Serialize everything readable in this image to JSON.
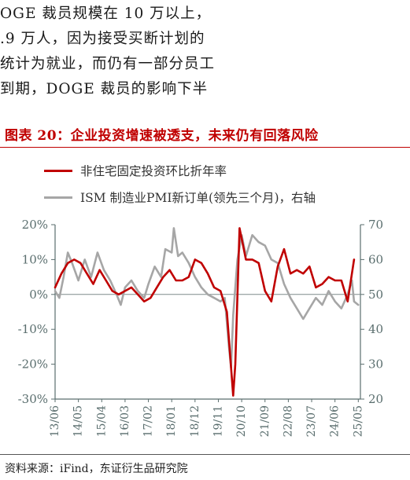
{
  "paragraph": {
    "lines": [
      "OGE 裁员规模在 10 万以上，",
      ".9 万人，因为接受买断计划的",
      "统计为就业，而仍有一部分员工",
      "到期，DOGE 裁员的影响下半"
    ]
  },
  "chart_title": "图表 20：企业投资增速被透支，未来仍有回落风险",
  "source": "资料来源：iFind，东证衍生品研究院",
  "colors": {
    "series1": "#c00000",
    "series2": "#a6a6a6",
    "title": "#c00000",
    "axis": "#5a6e6e"
  },
  "chart_data": {
    "type": "line",
    "x_labels": [
      "13/06",
      "14/05",
      "15/04",
      "16/03",
      "17/02",
      "18/01",
      "18/12",
      "19/11",
      "20/10",
      "21/09",
      "22/08",
      "23/07",
      "24/06",
      "25/05"
    ],
    "x_range": [
      "2013-06",
      "2025-06"
    ],
    "y_left": {
      "ticks": [
        "20%",
        "10%",
        "0%",
        "-10%",
        "-20%",
        "-30%"
      ],
      "min": -30,
      "max": 20
    },
    "y_right": {
      "ticks": [
        "70",
        "60",
        "50",
        "40",
        "30",
        "20"
      ],
      "min": 20,
      "max": 70
    },
    "series": [
      {
        "name": "非住宅固定投资环比折年率",
        "axis": "left",
        "points": [
          [
            "2013-06",
            2
          ],
          [
            "2013-09",
            6
          ],
          [
            "2013-12",
            9
          ],
          [
            "2014-03",
            10
          ],
          [
            "2014-06",
            9
          ],
          [
            "2014-09",
            6
          ],
          [
            "2014-12",
            3
          ],
          [
            "2015-03",
            7
          ],
          [
            "2015-06",
            4
          ],
          [
            "2015-09",
            1
          ],
          [
            "2015-12",
            0
          ],
          [
            "2016-03",
            1
          ],
          [
            "2016-06",
            2
          ],
          [
            "2016-09",
            0
          ],
          [
            "2016-12",
            -2
          ],
          [
            "2017-03",
            -1
          ],
          [
            "2017-06",
            2
          ],
          [
            "2017-09",
            5
          ],
          [
            "2017-12",
            7
          ],
          [
            "2018-03",
            4
          ],
          [
            "2018-06",
            4
          ],
          [
            "2018-09",
            5
          ],
          [
            "2018-12",
            10
          ],
          [
            "2019-03",
            9
          ],
          [
            "2019-06",
            6
          ],
          [
            "2019-09",
            2
          ],
          [
            "2019-12",
            1
          ],
          [
            "2020-03",
            -5
          ],
          [
            "2020-06",
            -29
          ],
          [
            "2020-07",
            -20
          ],
          [
            "2020-09",
            19
          ],
          [
            "2020-12",
            10
          ],
          [
            "2021-03",
            10
          ],
          [
            "2021-06",
            9
          ],
          [
            "2021-09",
            1
          ],
          [
            "2021-12",
            -2
          ],
          [
            "2022-03",
            8
          ],
          [
            "2022-06",
            13
          ],
          [
            "2022-09",
            6
          ],
          [
            "2022-12",
            7
          ],
          [
            "2023-03",
            6
          ],
          [
            "2023-06",
            8
          ],
          [
            "2023-09",
            2
          ],
          [
            "2023-12",
            3
          ],
          [
            "2024-03",
            5
          ],
          [
            "2024-06",
            4
          ],
          [
            "2024-09",
            4
          ],
          [
            "2024-12",
            -2
          ],
          [
            "2025-03",
            10
          ]
        ]
      },
      {
        "name": "ISM 制造业PMI新订单(领先三个月)，右轴",
        "axis": "right",
        "points": [
          [
            "2013-06",
            51
          ],
          [
            "2013-08",
            49
          ],
          [
            "2013-10",
            55
          ],
          [
            "2013-12",
            62
          ],
          [
            "2014-02",
            59
          ],
          [
            "2014-05",
            54
          ],
          [
            "2014-08",
            60
          ],
          [
            "2014-11",
            55
          ],
          [
            "2015-02",
            62
          ],
          [
            "2015-05",
            57
          ],
          [
            "2015-08",
            54
          ],
          [
            "2015-11",
            50
          ],
          [
            "2016-01",
            47
          ],
          [
            "2016-03",
            52
          ],
          [
            "2016-06",
            54
          ],
          [
            "2016-09",
            51
          ],
          [
            "2016-12",
            49
          ],
          [
            "2017-02",
            53
          ],
          [
            "2017-05",
            58
          ],
          [
            "2017-08",
            55
          ],
          [
            "2017-10",
            63
          ],
          [
            "2018-01",
            62
          ],
          [
            "2018-02",
            69
          ],
          [
            "2018-04",
            61
          ],
          [
            "2018-06",
            62
          ],
          [
            "2018-09",
            59
          ],
          [
            "2018-12",
            55
          ],
          [
            "2019-03",
            52
          ],
          [
            "2019-06",
            50
          ],
          [
            "2019-09",
            49
          ],
          [
            "2019-12",
            48
          ],
          [
            "2020-02",
            49
          ],
          [
            "2020-04",
            35
          ],
          [
            "2020-05",
            29
          ],
          [
            "2020-06",
            44
          ],
          [
            "2020-08",
            60
          ],
          [
            "2020-10",
            67
          ],
          [
            "2020-12",
            61
          ],
          [
            "2021-03",
            67
          ],
          [
            "2021-06",
            65
          ],
          [
            "2021-09",
            64
          ],
          [
            "2021-12",
            60
          ],
          [
            "2022-03",
            59
          ],
          [
            "2022-06",
            53
          ],
          [
            "2022-09",
            49
          ],
          [
            "2022-12",
            46
          ],
          [
            "2023-03",
            43
          ],
          [
            "2023-06",
            46
          ],
          [
            "2023-09",
            49
          ],
          [
            "2023-12",
            47
          ],
          [
            "2024-03",
            51
          ],
          [
            "2024-06",
            48
          ],
          [
            "2024-09",
            46
          ],
          [
            "2024-12",
            50
          ],
          [
            "2025-02",
            54
          ],
          [
            "2025-03",
            48
          ],
          [
            "2025-05",
            47
          ]
        ]
      }
    ]
  }
}
